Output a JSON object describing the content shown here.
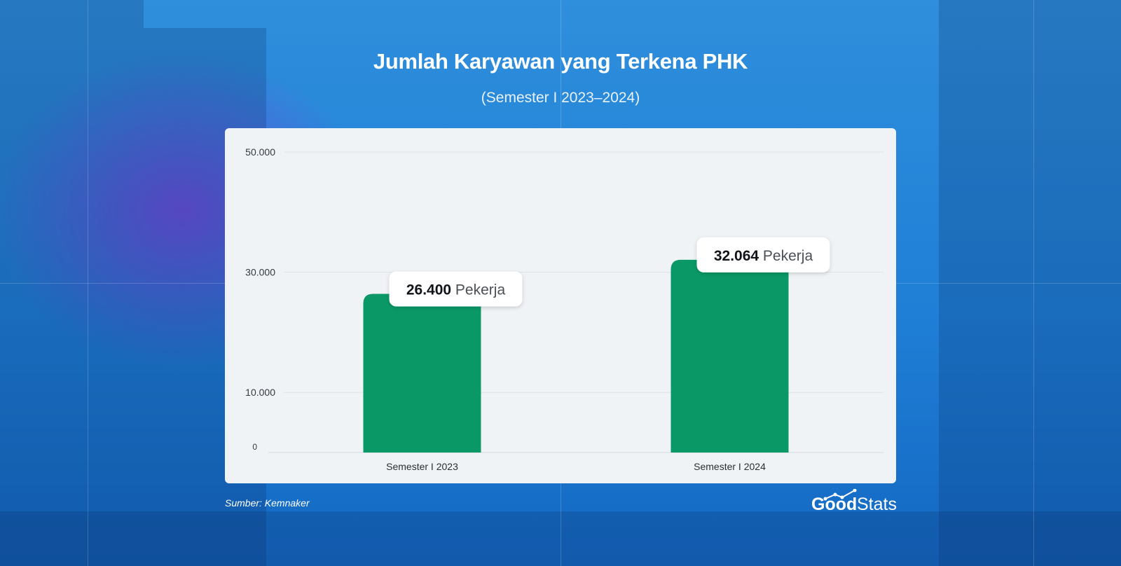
{
  "title": "Jumlah Karyawan yang Terkena PHK",
  "subtitle": "(Semester I 2023–2024)",
  "source": "Sumber: Kemnaker",
  "logo": {
    "text_part1": "Good",
    "text_part2": "Stats"
  },
  "colors": {
    "bar": "#0a9966",
    "background": "#2386d8",
    "card": "#eff3f6",
    "accent_purple": "#7846dc"
  },
  "chart_data": {
    "type": "bar",
    "title": "Jumlah Karyawan yang Terkena PHK",
    "subtitle": "(Semester I 2023–2024)",
    "categories": [
      "Semester I 2023",
      "Semester I 2024"
    ],
    "values": [
      26400,
      32064
    ],
    "value_labels": [
      "26.400",
      "32.064"
    ],
    "value_unit": "Pekerja",
    "yticks": [
      0,
      10000,
      30000,
      50000
    ],
    "ytick_labels": [
      "0",
      "10.000",
      "30.000",
      "50.000"
    ],
    "ylim": [
      0,
      50000
    ],
    "grid": true,
    "legend": "none"
  }
}
